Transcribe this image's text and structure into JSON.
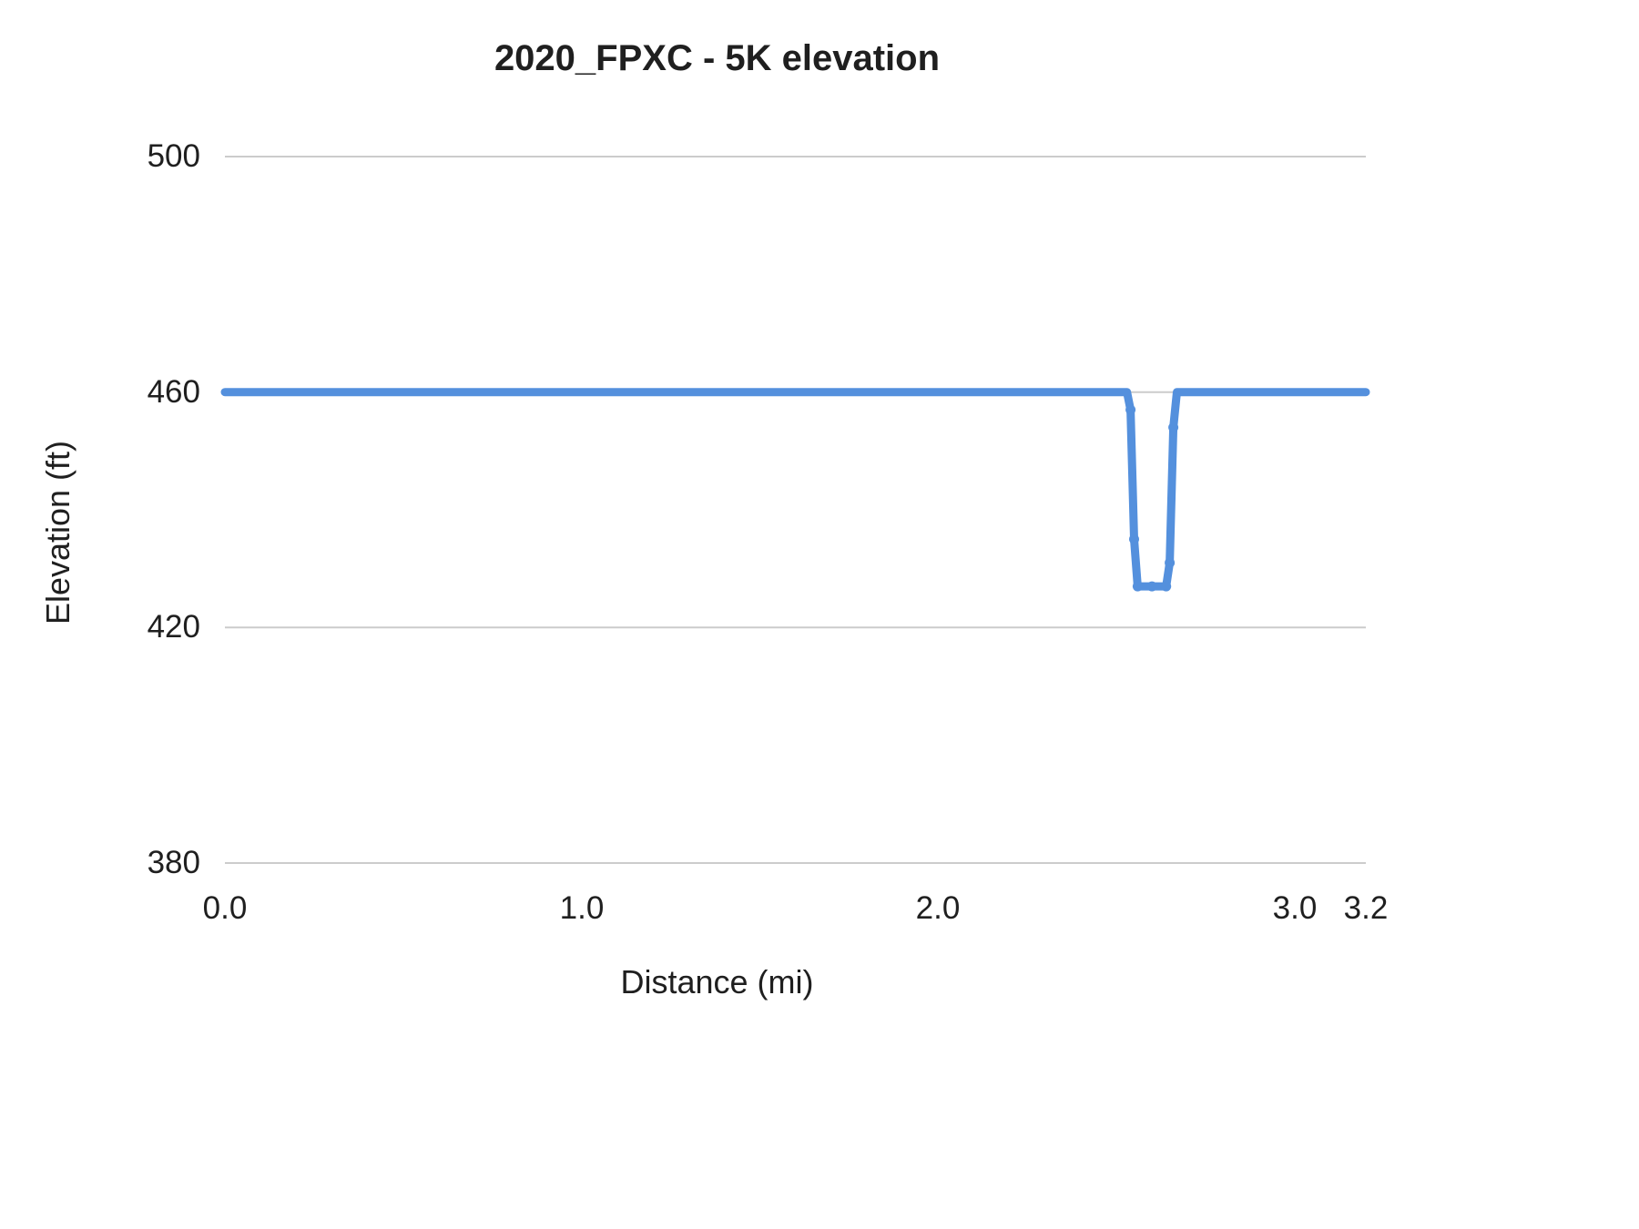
{
  "chart_data": {
    "type": "line",
    "title": "2020_FPXC - 5K elevation",
    "xlabel": "Distance (mi)",
    "ylabel": "Elevation (ft)",
    "xlim": [
      0,
      3.2
    ],
    "ylim": [
      380,
      500
    ],
    "xticks": [
      0,
      1,
      2,
      3,
      3.2
    ],
    "xtick_labels": [
      "0.0",
      "1.0",
      "2.0",
      "3.0",
      "3.2"
    ],
    "yticks": [
      380,
      420,
      460,
      500
    ],
    "ytick_labels": [
      "380",
      "420",
      "460",
      "500"
    ],
    "grid": "horizontal-only",
    "grid_color": "#cccccc",
    "line_color": "#5490dd",
    "legend": "none",
    "series": [
      {
        "name": "Elevation (ft)",
        "points": [
          [
            0.0,
            460
          ],
          [
            2.53,
            460
          ],
          [
            2.54,
            457
          ],
          [
            2.55,
            435
          ],
          [
            2.56,
            427
          ],
          [
            2.64,
            427
          ],
          [
            2.65,
            431
          ],
          [
            2.66,
            454
          ],
          [
            2.67,
            460
          ],
          [
            3.2,
            460
          ]
        ]
      }
    ],
    "dip_markers": [
      [
        2.54,
        457
      ],
      [
        2.55,
        435
      ],
      [
        2.56,
        427
      ],
      [
        2.6,
        427
      ],
      [
        2.64,
        427
      ],
      [
        2.65,
        431
      ],
      [
        2.66,
        454
      ]
    ]
  }
}
